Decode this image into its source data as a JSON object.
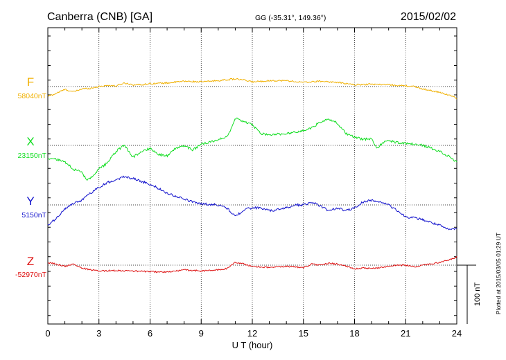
{
  "header": {
    "station": "Canberra (CNB)  [GA]",
    "coords": "GG (-35.31°, 149.36°)",
    "date": "2015/02/02"
  },
  "plotted_note": "Plotted at 2015/03/05 01:29 UT",
  "scale_bar_label": "100 nT",
  "colors": {
    "F": "#f0b000",
    "X": "#10dd20",
    "Y": "#1010cc",
    "Z": "#dd1010"
  },
  "chart_data": {
    "type": "line",
    "xlabel": "U T (hour)",
    "xlim": [
      0,
      24
    ],
    "x_ticks": [
      "0",
      "3",
      "6",
      "9",
      "12",
      "15",
      "18",
      "21",
      "24"
    ],
    "grid": true,
    "scale_bar_nT": 100,
    "series": [
      {
        "name": "F",
        "baseline_label": "58040nT",
        "baseline_nT": 58040,
        "x": [
          0,
          0.3,
          0.6,
          1.0,
          1.5,
          2.0,
          2.5,
          3.0,
          3.5,
          4.0,
          4.5,
          5.0,
          5.5,
          6.0,
          7.0,
          8.0,
          9.0,
          10.0,
          11.0,
          11.5,
          12.0,
          13.0,
          14.0,
          15.0,
          16.0,
          17.0,
          18.0,
          19.0,
          20.0,
          21.0,
          21.5,
          22.0,
          23.0,
          23.5,
          24.0
        ],
        "dev_nT": [
          -16,
          -14,
          -10,
          -5,
          -9,
          -4,
          -3,
          0,
          2,
          1,
          6,
          3,
          3,
          5,
          6,
          9,
          8,
          10,
          13,
          11,
          8,
          10,
          10,
          7,
          9,
          7,
          3,
          4,
          3,
          1,
          0,
          -4,
          -10,
          -14,
          -20
        ]
      },
      {
        "name": "X",
        "baseline_label": "23150nT",
        "baseline_nT": 23150,
        "x": [
          0,
          0.5,
          1.0,
          1.5,
          2.0,
          2.3,
          2.7,
          3.0,
          3.5,
          4.0,
          4.5,
          5.0,
          5.5,
          6.0,
          6.5,
          7.0,
          7.5,
          8.0,
          8.5,
          9.0,
          9.5,
          10.0,
          10.5,
          10.8,
          11.0,
          11.5,
          12.0,
          12.5,
          13.0,
          14.0,
          15.0,
          15.5,
          16.0,
          16.5,
          17.0,
          17.5,
          18.0,
          18.5,
          19.0,
          19.3,
          19.7,
          20.0,
          20.5,
          21.0,
          21.5,
          22.0,
          22.5,
          23.0,
          23.5,
          24.0
        ],
        "dev_nT": [
          -22,
          -24,
          -28,
          -40,
          -46,
          -60,
          -52,
          -40,
          -30,
          -10,
          0,
          -20,
          -10,
          -5,
          -15,
          -18,
          -5,
          0,
          -8,
          2,
          5,
          10,
          15,
          30,
          46,
          40,
          35,
          20,
          18,
          20,
          25,
          30,
          40,
          44,
          38,
          20,
          14,
          10,
          12,
          -5,
          5,
          8,
          5,
          3,
          2,
          0,
          -5,
          -10,
          -18,
          -28
        ]
      },
      {
        "name": "Y",
        "baseline_label": "5150nT",
        "baseline_nT": 5150,
        "x": [
          0,
          0.3,
          0.6,
          1.0,
          1.5,
          2.0,
          2.5,
          3.0,
          3.5,
          4.0,
          4.5,
          5.0,
          5.5,
          6.0,
          6.5,
          7.0,
          7.5,
          8.0,
          8.5,
          9.0,
          9.5,
          10.0,
          10.5,
          11.0,
          11.5,
          12.0,
          12.5,
          13.0,
          13.5,
          14.0,
          14.5,
          15.0,
          15.5,
          16.0,
          16.5,
          17.0,
          17.5,
          18.0,
          18.5,
          19.0,
          19.5,
          20.0,
          20.5,
          21.0,
          21.5,
          22.0,
          22.5,
          23.0,
          23.5,
          24.0
        ],
        "dev_nT": [
          -35,
          -28,
          -20,
          -6,
          2,
          8,
          20,
          30,
          38,
          43,
          48,
          45,
          40,
          35,
          28,
          20,
          15,
          10,
          5,
          2,
          1,
          0,
          -5,
          -20,
          -8,
          -5,
          -5,
          -10,
          -8,
          -5,
          0,
          0,
          5,
          -2,
          -10,
          -5,
          -10,
          -5,
          5,
          8,
          5,
          0,
          -10,
          -20,
          -22,
          -25,
          -30,
          -35,
          -42,
          -40
        ]
      },
      {
        "name": "Z",
        "baseline_label": "-52970nT",
        "baseline_nT": -52970,
        "x": [
          0,
          0.5,
          1.0,
          1.5,
          2.0,
          2.5,
          3.0,
          4.0,
          5.0,
          6.0,
          7.0,
          8.0,
          9.0,
          10.0,
          10.5,
          11.0,
          11.5,
          12.0,
          13.0,
          14.0,
          15.0,
          15.5,
          16.0,
          16.5,
          17.0,
          18.0,
          18.5,
          19.0,
          20.0,
          20.5,
          21.0,
          21.5,
          22.0,
          22.5,
          23.0,
          23.5,
          24.0
        ],
        "dev_nT": [
          4,
          2,
          -2,
          2,
          -5,
          -8,
          -10,
          -9,
          -10,
          -11,
          -12,
          -8,
          -10,
          -8,
          -6,
          5,
          2,
          -2,
          -4,
          -2,
          -4,
          2,
          0,
          3,
          2,
          -6,
          -5,
          -6,
          -2,
          0,
          0,
          -3,
          0,
          2,
          5,
          8,
          14
        ]
      }
    ]
  }
}
